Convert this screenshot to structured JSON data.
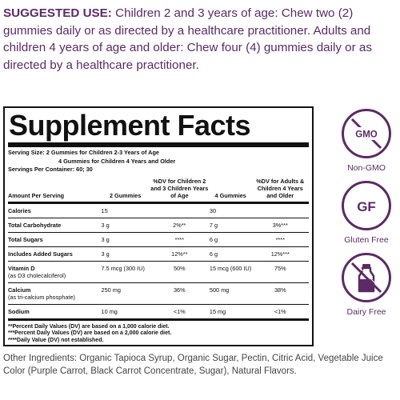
{
  "suggested_use": {
    "lead": "SUGGESTED USE:",
    "text": "Children 2 and 3 years of age: Chew two (2) gummies daily or as directed by a healthcare practitioner. Adults and children 4 years of age and older: Chew four (4) gummies daily or as directed by a healthcare practitioner."
  },
  "facts": {
    "title": "Supplement Facts",
    "serving_size_line1": "Serving Size: 2 Gummies for Children 2-3 Years of Age",
    "serving_size_line2": "4 Gummies for Children 4 Years and Older",
    "servings_per_container": "Servings Per Container: 60; 30",
    "headers": {
      "amount": "Amount Per Serving",
      "col1": "2 Gummies",
      "col2": "%DV for Children 2 and 3 Children Years of Age",
      "col3": "4 Gummies",
      "col4": "%DV for Adults & Children 4 Years and Older"
    },
    "rows": [
      {
        "name": "Calories",
        "sub": "",
        "a": "15",
        "b": "",
        "c": "30",
        "d": ""
      },
      {
        "name": "Total Carbohydrate",
        "sub": "",
        "a": "3 g",
        "b": "2%**",
        "c": "7 g",
        "d": "3%***"
      },
      {
        "name": "Total Sugars",
        "sub": "",
        "a": "3 g",
        "b": "****",
        "c": "6 g",
        "d": "****"
      },
      {
        "name": "Includes Added Sugars",
        "sub": "",
        "a": "3 g",
        "b": "12%**",
        "c": "6 g",
        "d": "12%***"
      },
      {
        "name": "Vitamin D",
        "sub": "(as D3 cholecalciferol)",
        "a": "7.5 mcg (300 IU)",
        "b": "50%",
        "c": "15 mcg (600 IU)",
        "d": "75%"
      },
      {
        "name": "Calcium",
        "sub": "(as tri-calcium phosphate)",
        "a": "250 mg",
        "b": "36%",
        "c": "500 mg",
        "d": "38%"
      },
      {
        "name": "Sodium",
        "sub": "",
        "a": "10 mg",
        "b": "<1%",
        "c": "15 mg",
        "d": "<1%"
      }
    ],
    "notes": [
      "**Percent Daily Values (DV) are based on a 1,000 calorie diet.",
      "***Percent Daily Values (DV) are based on a 2,000 calorie diet.",
      "****Daily Value (DV) not established."
    ]
  },
  "other_ingredients": "Other Ingredients: Organic Tapioca Syrup, Organic Sugar, Pectin, Citric Acid, Vegetable Juice Color (Purple Carrot, Black Carrot Concentrate, Sugar), Natural Flavors.",
  "badges": [
    {
      "icon": "gmo-icon",
      "icon_text": "GMO",
      "label": "Non-GMO"
    },
    {
      "icon": "gf-icon",
      "icon_text": "GF",
      "label": "Gluten Free"
    },
    {
      "icon": "dairy-icon",
      "icon_text": "",
      "label": "Dairy Free"
    }
  ],
  "colors": {
    "accent": "#5b2a67",
    "text": "#111111"
  }
}
